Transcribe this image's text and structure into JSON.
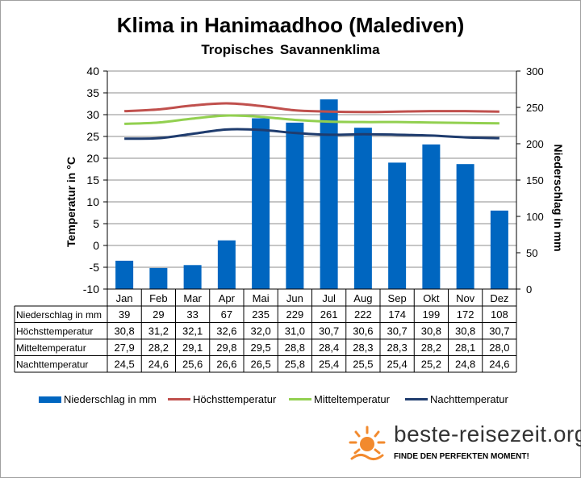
{
  "chart_data": {
    "type": "bar",
    "title": "Klima in Hanimaadhoo (Malediven)",
    "subtitle": "Tropisches  Savannenklima",
    "categories": [
      "Jan",
      "Feb",
      "Mar",
      "Apr",
      "Mai",
      "Jun",
      "Jul",
      "Aug",
      "Sep",
      "Okt",
      "Nov",
      "Dez"
    ],
    "ylabel_left": "Temperatur in °C",
    "ylabel_right": "Niederschlag in mm",
    "ylim_left": [
      -10,
      40
    ],
    "ylim_right": [
      0,
      300
    ],
    "yticks_left": [
      "40",
      "35",
      "30",
      "25",
      "20",
      "15",
      "10",
      "5",
      "0",
      "-5",
      "-10"
    ],
    "yticks_right": [
      "300",
      "250",
      "200",
      "150",
      "100",
      "50",
      "0"
    ],
    "grid": true,
    "legend_position": "bottom",
    "series": [
      {
        "name": "Niederschlag in mm",
        "kind": "bar",
        "axis": "right",
        "color": "#0066c0",
        "values": [
          39,
          29,
          33,
          67,
          235,
          229,
          261,
          222,
          174,
          199,
          172,
          108
        ],
        "labels": [
          "39",
          "29",
          "33",
          "67",
          "235",
          "229",
          "261",
          "222",
          "174",
          "199",
          "172",
          "108"
        ]
      },
      {
        "name": "Höchsttemperatur",
        "kind": "line",
        "axis": "left",
        "color": "#c0504d",
        "values": [
          30.8,
          31.2,
          32.1,
          32.6,
          32.0,
          31.0,
          30.7,
          30.6,
          30.7,
          30.8,
          30.8,
          30.7
        ],
        "labels": [
          "30,8",
          "31,2",
          "32,1",
          "32,6",
          "32,0",
          "31,0",
          "30,7",
          "30,6",
          "30,7",
          "30,8",
          "30,8",
          "30,7"
        ]
      },
      {
        "name": "Mitteltemperatur",
        "kind": "line",
        "axis": "left",
        "color": "#92d050",
        "values": [
          27.9,
          28.2,
          29.1,
          29.8,
          29.5,
          28.8,
          28.4,
          28.3,
          28.3,
          28.2,
          28.1,
          28.0
        ],
        "labels": [
          "27,9",
          "28,2",
          "29,1",
          "29,8",
          "29,5",
          "28,8",
          "28,4",
          "28,3",
          "28,3",
          "28,2",
          "28,1",
          "28,0"
        ]
      },
      {
        "name": "Nachttemperatur",
        "kind": "line",
        "axis": "left",
        "color": "#1f3c6e",
        "values": [
          24.5,
          24.6,
          25.6,
          26.6,
          26.5,
          25.8,
          25.4,
          25.5,
          25.4,
          25.2,
          24.8,
          24.6
        ],
        "labels": [
          "24,5",
          "24,6",
          "25,6",
          "26,6",
          "26,5",
          "25,8",
          "25,4",
          "25,5",
          "25,4",
          "25,2",
          "24,8",
          "24,6"
        ]
      }
    ]
  },
  "brand": {
    "name": "beste-reisezeit.org",
    "slogan": "FINDE DEN PERFEKTEN MOMENT!",
    "sun_color": "#f28a2e"
  }
}
